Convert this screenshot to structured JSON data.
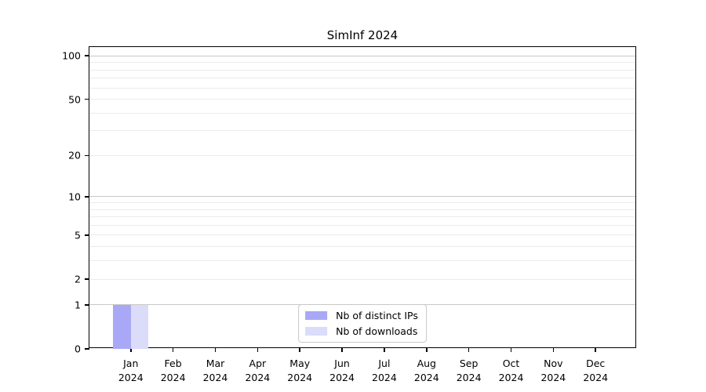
{
  "chart_data": {
    "type": "bar",
    "title": "SimInf 2024",
    "categories": [
      {
        "month": "Jan",
        "year": "2024"
      },
      {
        "month": "Feb",
        "year": "2024"
      },
      {
        "month": "Mar",
        "year": "2024"
      },
      {
        "month": "Apr",
        "year": "2024"
      },
      {
        "month": "May",
        "year": "2024"
      },
      {
        "month": "Jun",
        "year": "2024"
      },
      {
        "month": "Jul",
        "year": "2024"
      },
      {
        "month": "Aug",
        "year": "2024"
      },
      {
        "month": "Sep",
        "year": "2024"
      },
      {
        "month": "Oct",
        "year": "2024"
      },
      {
        "month": "Nov",
        "year": "2024"
      },
      {
        "month": "Dec",
        "year": "2024"
      }
    ],
    "series": [
      {
        "name": "Nb of distinct IPs",
        "color": "#a8a8f7",
        "values": [
          1,
          0,
          0,
          0,
          0,
          0,
          0,
          0,
          0,
          0,
          0,
          0
        ]
      },
      {
        "name": "Nb of downloads",
        "color": "#dbdbfa",
        "values": [
          1,
          0,
          0,
          0,
          0,
          0,
          0,
          0,
          0,
          0,
          0,
          0
        ]
      }
    ],
    "xlabel": "",
    "ylabel": "",
    "y_scale": "log1p",
    "ylim": [
      0,
      115
    ],
    "y_ticks": [
      0,
      1,
      2,
      5,
      10,
      20,
      50,
      100
    ],
    "y_major_gridlines": [
      1,
      10,
      100
    ],
    "y_minor_gridlines": [
      2,
      3,
      4,
      5,
      6,
      7,
      8,
      9,
      20,
      30,
      40,
      50,
      60,
      70,
      80,
      90
    ],
    "grid": "horizontal only",
    "legend_position": "bottom-center"
  },
  "colors": {
    "background": "#ffffff",
    "axis": "#000000",
    "major_grid": "#c8c8c8",
    "minor_grid": "#ebebeb",
    "legend_border": "#c8c8c8",
    "bar_distinct_ips": "#a8a8f7",
    "bar_downloads": "#dbdbfa"
  }
}
